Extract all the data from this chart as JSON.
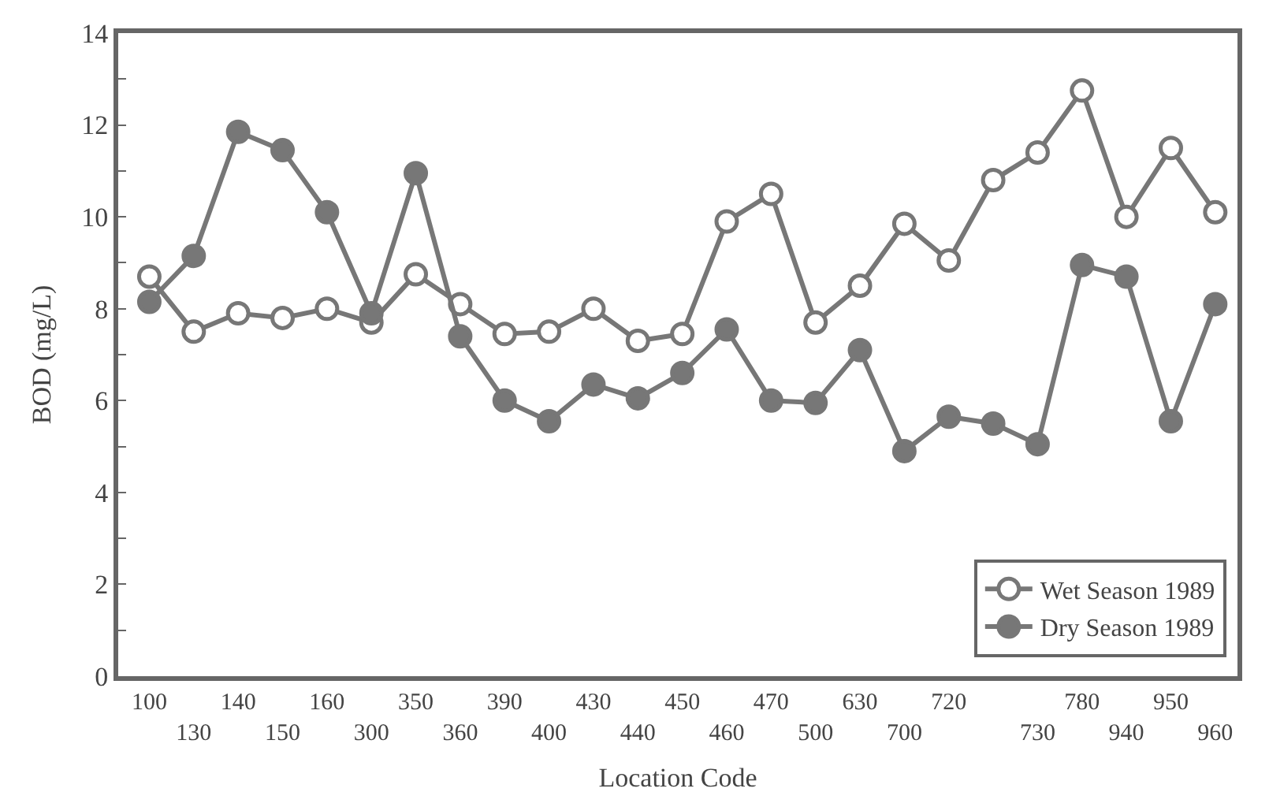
{
  "chart_data": {
    "type": "line",
    "xlabel": "Location Code",
    "ylabel": "BOD (mg/L)",
    "categories": [
      "100",
      "130",
      "140",
      "150",
      "160",
      "300",
      "350",
      "360",
      "390",
      "400",
      "430",
      "440",
      "450",
      "460",
      "470",
      "500",
      "630",
      "700",
      "720",
      null,
      "730",
      "780",
      "940",
      "950",
      "960"
    ],
    "series": [
      {
        "name": "Wet Season 1989",
        "color": "#777777",
        "marker": "circle-open",
        "values": [
          8.7,
          7.5,
          7.9,
          7.8,
          8.0,
          7.7,
          8.75,
          8.1,
          7.45,
          7.5,
          8.0,
          7.3,
          7.45,
          9.9,
          10.5,
          7.7,
          8.5,
          9.85,
          9.05,
          10.8,
          11.4,
          12.75,
          10.0,
          11.5,
          10.1
        ]
      },
      {
        "name": "Dry Season 1989",
        "color": "#777777",
        "marker": "circle",
        "values": [
          8.15,
          9.15,
          11.85,
          11.45,
          10.1,
          7.9,
          10.95,
          7.4,
          6.0,
          5.55,
          6.35,
          6.05,
          6.6,
          7.55,
          6.0,
          5.95,
          7.1,
          4.9,
          5.65,
          5.5,
          5.05,
          8.95,
          8.7,
          5.55,
          8.1
        ]
      }
    ],
    "ylim": [
      0,
      14
    ],
    "yticks": [
      0,
      {
        "value": 1,
        "label": null
      },
      2,
      {
        "value": 3,
        "label": null
      },
      4,
      {
        "value": 5,
        "label": null
      },
      6,
      {
        "value": 7,
        "label": null
      },
      8,
      {
        "value": 9,
        "label": null
      },
      10,
      {
        "value": 11,
        "label": null
      },
      12,
      {
        "value": 13,
        "label": null
      },
      14
    ],
    "legend": "bottom right",
    "line_style": "solid"
  }
}
